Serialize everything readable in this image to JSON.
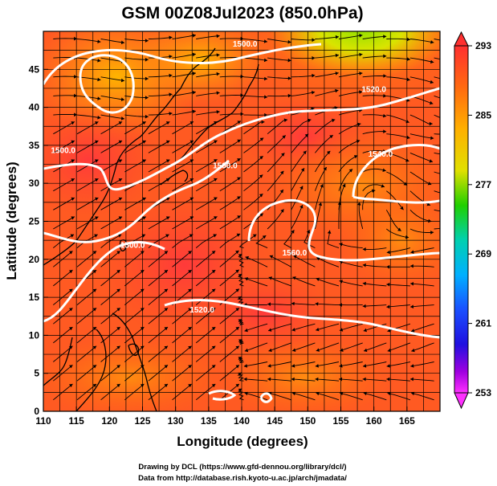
{
  "title": "GSM 00Z08Jul2023 (850.0hPa)",
  "axes": {
    "xlabel": "Longitude (degrees)",
    "ylabel": "Latitude  (degrees)",
    "xlim": [
      110,
      170
    ],
    "ylim": [
      0,
      50
    ],
    "xticks": [
      "110",
      "115",
      "120",
      "125",
      "130",
      "135",
      "140",
      "145",
      "150",
      "155",
      "160",
      "165"
    ],
    "yticks": [
      "0",
      "5",
      "10",
      "15",
      "20",
      "25",
      "30",
      "35",
      "40",
      "45"
    ],
    "grid": true
  },
  "colorbar": {
    "range": [
      253,
      293
    ],
    "labels": [
      "293",
      "285",
      "277",
      "269",
      "261",
      "253"
    ],
    "colors": [
      "#ff2a2a",
      "#ff7a10",
      "#ffd000",
      "#2ad400",
      "#00d0d0",
      "#1a6cff",
      "#1a10ff",
      "#7a00d0",
      "#ff2aff"
    ]
  },
  "contours": [
    {
      "label": "1500.0",
      "lon": 140.5,
      "lat": 48.0
    },
    {
      "label": "1500.0",
      "lon": 137.5,
      "lat": 32.0
    },
    {
      "label": "1500.0",
      "lon": 113.0,
      "lat": 34.0
    },
    {
      "label": "1500.0",
      "lon": 123.5,
      "lat": 21.5
    },
    {
      "label": "1520.0",
      "lon": 160.0,
      "lat": 42.0
    },
    {
      "label": "1540.0",
      "lon": 161.0,
      "lat": 33.5
    },
    {
      "label": "1560.0",
      "lon": 148.0,
      "lat": 20.5
    },
    {
      "label": "1520.0",
      "lon": 134.0,
      "lat": 13.0
    }
  ],
  "credits": {
    "line1": "Drawing by DCL (https://www.gfd-dennou.org/library/dcl/)",
    "line2": "Data from http://database.rish.kyoto-u.ac.jp/arch/jmadata/"
  }
}
